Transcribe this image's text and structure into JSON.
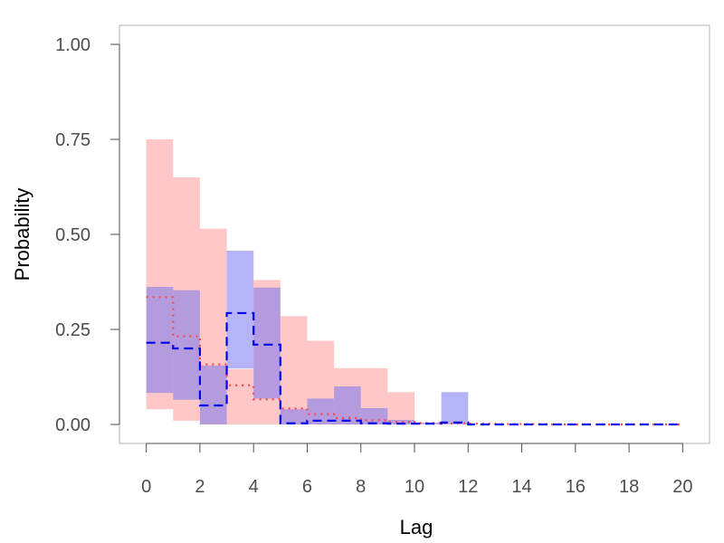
{
  "chart_data": {
    "type": "area",
    "xlabel": "Lag",
    "ylabel": "Probability",
    "xlim": [
      -1,
      21
    ],
    "ylim": [
      -0.05,
      1.05
    ],
    "x_ticks": [
      0,
      2,
      4,
      6,
      8,
      10,
      12,
      14,
      16,
      18,
      20
    ],
    "y_ticks": [
      "0.00",
      "0.25",
      "0.50",
      "0.75",
      "1.00"
    ],
    "y_tick_values": [
      0,
      0.25,
      0.5,
      0.75,
      1.0
    ],
    "grid": false,
    "series": [
      {
        "kind": "band",
        "color": "#ff9999",
        "opacity": 0.55,
        "x": [
          0,
          1,
          2,
          3,
          4,
          5,
          6,
          7,
          8,
          9,
          10,
          11,
          12,
          13,
          14,
          15,
          16,
          17,
          18,
          19
        ],
        "lower": [
          0.04,
          0.01,
          0.0,
          0.0,
          0.0,
          0.0,
          0.0,
          0.0,
          0.0,
          0.0,
          0.0,
          0.0,
          0.0,
          0.0,
          0.0,
          0.0,
          0.0,
          0.0,
          0.0,
          0.0
        ],
        "upper": [
          0.75,
          0.65,
          0.515,
          0.145,
          0.38,
          0.285,
          0.22,
          0.148,
          0.148,
          0.085,
          0.0,
          0.0,
          0.0,
          0.0,
          0.0,
          0.0,
          0.0,
          0.0,
          0.0,
          0.0
        ]
      },
      {
        "kind": "band",
        "color": "#7777ee",
        "opacity": 0.55,
        "x": [
          0,
          1,
          2,
          3,
          4,
          5,
          6,
          7,
          8,
          9,
          10,
          11,
          12,
          13,
          14,
          15,
          16,
          17,
          18,
          19
        ],
        "lower": [
          0.083,
          0.065,
          0.0,
          0.147,
          0.068,
          0.0,
          0.0,
          0.0,
          0.0,
          0.0,
          0.0,
          0.0,
          0.0,
          0.0,
          0.0,
          0.0,
          0.0,
          0.0,
          0.0,
          0.0
        ],
        "upper": [
          0.362,
          0.353,
          0.155,
          0.457,
          0.36,
          0.04,
          0.068,
          0.1,
          0.043,
          0.012,
          0.005,
          0.085,
          0.0,
          0.0,
          0.0,
          0.0,
          0.0,
          0.0,
          0.0,
          0.0
        ]
      },
      {
        "kind": "step",
        "color": "#ff4444",
        "dash": "2,5",
        "x": [
          0,
          1,
          2,
          3,
          4,
          5,
          6,
          7,
          8,
          9,
          10,
          11,
          12,
          13,
          14,
          15,
          16,
          17,
          18,
          19
        ],
        "values": [
          0.335,
          0.232,
          0.158,
          0.103,
          0.066,
          0.042,
          0.027,
          0.017,
          0.011,
          0.007,
          0.004,
          0.003,
          0.002,
          0.001,
          0.001,
          0.0,
          0.0,
          0.0,
          0.0,
          0.0
        ]
      },
      {
        "kind": "step",
        "color": "#0000ee",
        "dash": "10,6",
        "x": [
          0,
          1,
          2,
          3,
          4,
          5,
          6,
          7,
          8,
          9,
          10,
          11,
          12,
          13,
          14,
          15,
          16,
          17,
          18,
          19
        ],
        "values": [
          0.215,
          0.2,
          0.05,
          0.293,
          0.21,
          0.003,
          0.01,
          0.01,
          0.003,
          0.002,
          0.002,
          0.005,
          0.0,
          0.0,
          0.0,
          0.0,
          0.0,
          0.0,
          0.0,
          0.0
        ]
      }
    ]
  }
}
